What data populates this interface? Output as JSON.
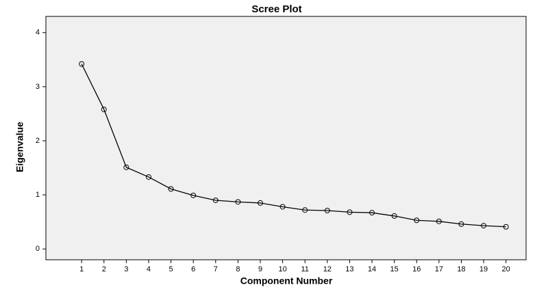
{
  "chart_data": {
    "type": "line",
    "title": "Scree Plot",
    "x_label": "Component Number",
    "y_label": "Eigenvalue",
    "x": [
      1,
      2,
      3,
      4,
      5,
      6,
      7,
      8,
      9,
      10,
      11,
      12,
      13,
      14,
      15,
      16,
      17,
      18,
      19,
      20
    ],
    "values": [
      3.42,
      2.58,
      1.51,
      1.33,
      1.11,
      0.99,
      0.9,
      0.87,
      0.85,
      0.78,
      0.72,
      0.71,
      0.68,
      0.67,
      0.61,
      0.53,
      0.51,
      0.46,
      0.43,
      0.41
    ],
    "color": "#000000",
    "xlim": [
      -0.6,
      20.9
    ],
    "xticks": [
      1,
      2,
      3,
      4,
      5,
      6,
      7,
      8,
      9,
      10,
      11,
      12,
      13,
      14,
      15,
      16,
      17,
      18,
      19,
      20
    ],
    "ylim": [
      -0.2,
      4.3
    ],
    "yticks": [
      0,
      1,
      2,
      3,
      4
    ],
    "grid": false,
    "markers": true
  }
}
